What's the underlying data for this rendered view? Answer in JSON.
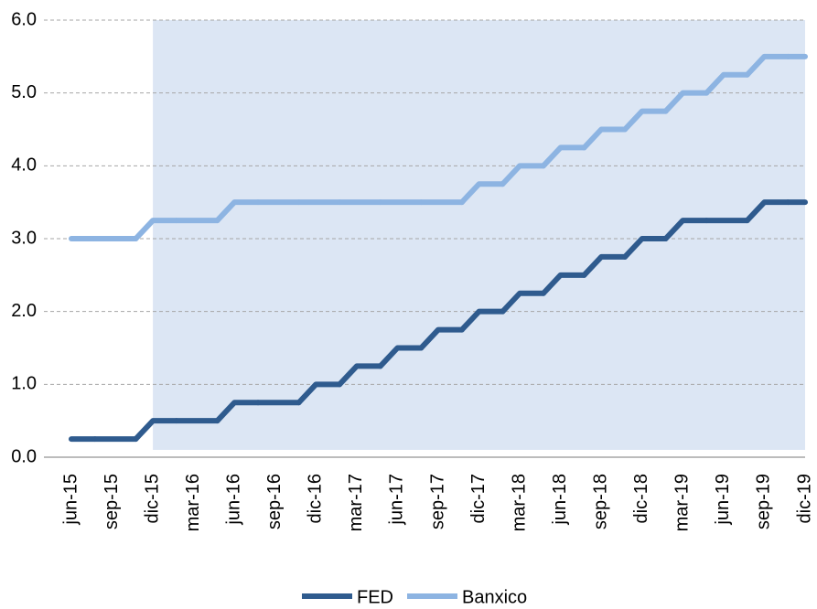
{
  "chart_data": {
    "type": "line",
    "step": true,
    "categories": [
      "jun-15",
      "sep-15",
      "dic-15",
      "mar-16",
      "jun-16",
      "sep-16",
      "dic-16",
      "mar-17",
      "jun-17",
      "sep-17",
      "dic-17",
      "mar-18",
      "jun-18",
      "sep-18",
      "dic-18",
      "mar-19",
      "jun-19",
      "sep-19",
      "dic-19"
    ],
    "series": [
      {
        "name": "FED",
        "color": "#2f5b8e",
        "values": [
          0.25,
          0.25,
          0.5,
          0.5,
          0.75,
          0.75,
          1.0,
          1.25,
          1.5,
          1.75,
          2.0,
          2.25,
          2.5,
          2.75,
          3.0,
          3.25,
          3.25,
          3.5,
          3.5
        ]
      },
      {
        "name": "Banxico",
        "color": "#8db4e2",
        "values": [
          3.0,
          3.0,
          3.25,
          3.25,
          3.5,
          3.5,
          3.5,
          3.5,
          3.5,
          3.5,
          3.75,
          4.0,
          4.25,
          4.5,
          4.75,
          5.0,
          5.25,
          5.5,
          5.5
        ]
      }
    ],
    "ylim": [
      0,
      6
    ],
    "yticks": [
      {
        "value": 0,
        "label": "0.0"
      },
      {
        "value": 1,
        "label": "1.0"
      },
      {
        "value": 2,
        "label": "2.0"
      },
      {
        "value": 3,
        "label": "3.0"
      },
      {
        "value": 4,
        "label": "4.0"
      },
      {
        "value": 5,
        "label": "5.0"
      },
      {
        "value": 6,
        "label": "6.0"
      }
    ],
    "grid": true,
    "legend": "bottom"
  }
}
